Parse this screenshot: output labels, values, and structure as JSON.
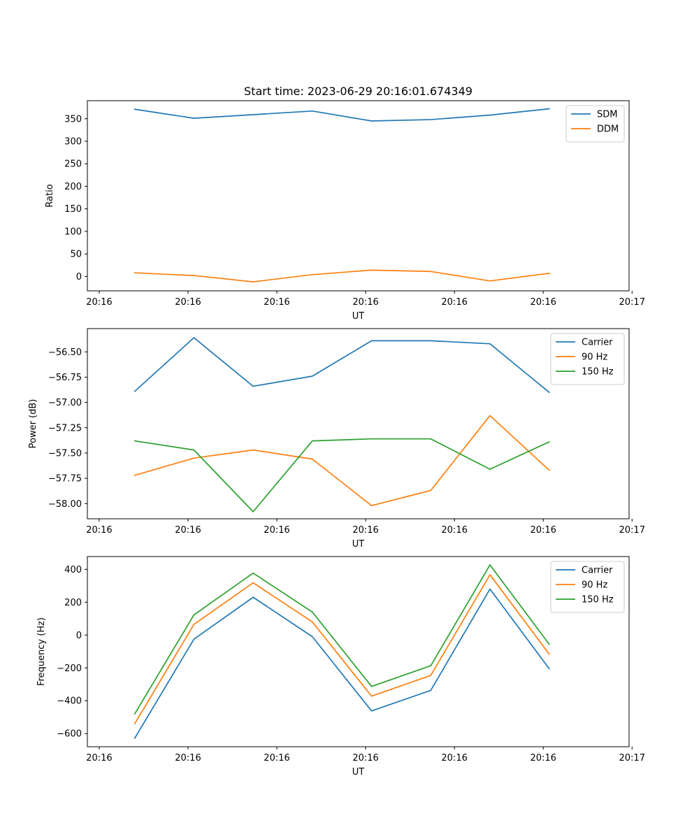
{
  "figure": {
    "title": "Start time: 2023-06-29 20:16:01.674349"
  },
  "colors": {
    "blue": "#1f77b4",
    "orange": "#ff7f0e",
    "green": "#2ca02c"
  },
  "chart_data": [
    {
      "type": "line",
      "title": "Start time: 2023-06-29 20:16:01.674349",
      "xlabel": "UT",
      "ylabel": "Ratio",
      "x": [
        1,
        2,
        3,
        4,
        5,
        6,
        7,
        8
      ],
      "xlim": [
        0.2,
        9.35
      ],
      "ylim": [
        -32,
        390
      ],
      "xticks": [
        0.4,
        1.9,
        3.4,
        4.9,
        6.4,
        7.9,
        9.4
      ],
      "xtick_labels": [
        "20:16",
        "20:16",
        "20:16",
        "20:16",
        "20:16",
        "20:16",
        "20:17"
      ],
      "yticks": [
        0,
        50,
        100,
        150,
        200,
        250,
        300,
        350
      ],
      "ytick_labels": [
        "0",
        "50",
        "100",
        "150",
        "200",
        "250",
        "300",
        "350"
      ],
      "legend_position": "top-right",
      "grid": false,
      "series": [
        {
          "name": "SDM",
          "color": "#1f77b4",
          "values": [
            371,
            351,
            359,
            367,
            345,
            348,
            358,
            372
          ]
        },
        {
          "name": "DDM",
          "color": "#ff7f0e",
          "values": [
            8,
            2,
            -12,
            4,
            14,
            11,
            -10,
            7
          ]
        }
      ]
    },
    {
      "type": "line",
      "title": "",
      "xlabel": "UT",
      "ylabel": "Power (dB)",
      "x": [
        1,
        2,
        3,
        4,
        5,
        6,
        7,
        8
      ],
      "xlim": [
        0.2,
        9.35
      ],
      "ylim": [
        -58.15,
        -56.27
      ],
      "xticks": [
        0.4,
        1.9,
        3.4,
        4.9,
        6.4,
        7.9,
        9.4
      ],
      "xtick_labels": [
        "20:16",
        "20:16",
        "20:16",
        "20:16",
        "20:16",
        "20:16",
        "20:17"
      ],
      "yticks": [
        -58.0,
        -57.75,
        -57.5,
        -57.25,
        -57.0,
        -56.75,
        -56.5
      ],
      "ytick_labels": [
        "−58.00",
        "−57.75",
        "−57.50",
        "−57.25",
        "−57.00",
        "−56.75",
        "−56.50"
      ],
      "legend_position": "top-right",
      "grid": false,
      "series": [
        {
          "name": "Carrier",
          "color": "#1f77b4",
          "values": [
            -56.89,
            -56.36,
            -56.84,
            -56.74,
            -56.39,
            -56.39,
            -56.42,
            -56.9
          ]
        },
        {
          "name": "90 Hz",
          "color": "#ff7f0e",
          "values": [
            -57.72,
            -57.55,
            -57.47,
            -57.56,
            -58.02,
            -57.87,
            -57.13,
            -57.67
          ]
        },
        {
          "name": "150 Hz",
          "color": "#2ca02c",
          "values": [
            -57.38,
            -57.47,
            -58.08,
            -57.38,
            -57.36,
            -57.36,
            -57.66,
            -57.39
          ]
        }
      ]
    },
    {
      "type": "line",
      "title": "",
      "xlabel": "UT",
      "ylabel": "Frequency (Hz)",
      "x": [
        1,
        2,
        3,
        4,
        5,
        6,
        7,
        8
      ],
      "xlim": [
        0.2,
        9.35
      ],
      "ylim": [
        -680,
        478
      ],
      "xticks": [
        0.4,
        1.9,
        3.4,
        4.9,
        6.4,
        7.9,
        9.4
      ],
      "xtick_labels": [
        "20:16",
        "20:16",
        "20:16",
        "20:16",
        "20:16",
        "20:16",
        "20:17"
      ],
      "yticks": [
        -600,
        -400,
        -200,
        0,
        200,
        400
      ],
      "ytick_labels": [
        "−600",
        "−400",
        "−200",
        "0",
        "200",
        "400"
      ],
      "legend_position": "top-right",
      "grid": false,
      "series": [
        {
          "name": "Carrier",
          "color": "#1f77b4",
          "values": [
            -628,
            -25,
            230,
            -10,
            -462,
            -337,
            280,
            -205
          ]
        },
        {
          "name": "90 Hz",
          "color": "#ff7f0e",
          "values": [
            -540,
            65,
            318,
            80,
            -372,
            -246,
            367,
            -116
          ]
        },
        {
          "name": "150 Hz",
          "color": "#2ca02c",
          "values": [
            -480,
            123,
            377,
            140,
            -313,
            -187,
            427,
            -56
          ]
        }
      ]
    }
  ]
}
